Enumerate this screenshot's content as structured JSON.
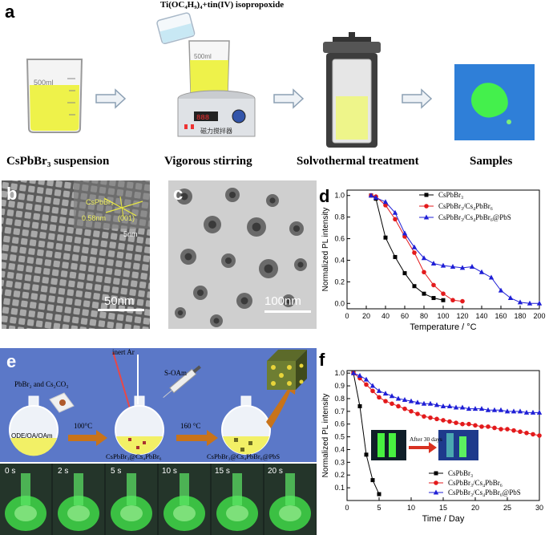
{
  "panel_a": {
    "label": "a",
    "reagent": "Ti(OC₄H₉)₄+tin(IV) isopropoxide",
    "beaker_volume": "500ml",
    "stirrer_text": "磁力搅拌器",
    "stages": [
      "CsPbBr₃ suspension",
      "Vigorous stirring",
      "Solvothermal treatment",
      "Samples"
    ]
  },
  "panel_b": {
    "label": "b",
    "lattice_phase": "CsPbBr₃",
    "d_spacing": "0.58nm",
    "plane": "(001)",
    "inset_scale": "5nm",
    "scale": "50nm"
  },
  "panel_c": {
    "label": "c",
    "scale": "100nm"
  },
  "panel_e": {
    "label": "e",
    "precursor": "PbBr₂ and Cs₂CO₃",
    "solvent": "ODE/OA/OAm",
    "gas": "inert Ar",
    "injection": "S-OAm",
    "temp1": "100°C",
    "temp2": "160 °C",
    "product1": "CsPbBr₃@Cs₄PbBr₆",
    "product2": "CsPbBr₃@Cs₄PbBr₆@PbS",
    "times": [
      "0 s",
      "2 s",
      "5 s",
      "10 s",
      "15 s",
      "20 s"
    ]
  },
  "colors": {
    "black": "#000000",
    "red": "#e31a1c",
    "blue": "#1f1fd6",
    "yellow": "#f2ee3a",
    "green": "#35e84a",
    "orange": "#c8731a"
  },
  "chart_data": [
    {
      "panel": "d",
      "type": "line",
      "xlabel": "Temperature / °C",
      "ylabel": "Normalized PL intensity",
      "xlim": [
        0,
        200
      ],
      "ylim": [
        -0.05,
        1.05
      ],
      "xticks": [
        0,
        20,
        40,
        60,
        80,
        100,
        120,
        140,
        160,
        180,
        200
      ],
      "yticks": [
        0.0,
        0.2,
        0.4,
        0.6,
        0.8,
        1.0
      ],
      "legend_position": "top-right",
      "series": [
        {
          "name": "CsPbBr₃",
          "marker": "square",
          "color": "#000000",
          "x": [
            25,
            30,
            40,
            50,
            60,
            70,
            80,
            90,
            100
          ],
          "y": [
            1.0,
            0.97,
            0.61,
            0.43,
            0.28,
            0.16,
            0.09,
            0.05,
            0.03
          ]
        },
        {
          "name": "CsPbBr₃/Cs₄PbBr₆",
          "marker": "circle",
          "color": "#e31a1c",
          "x": [
            25,
            30,
            40,
            50,
            60,
            70,
            80,
            90,
            100,
            110,
            120
          ],
          "y": [
            1.0,
            0.99,
            0.91,
            0.78,
            0.62,
            0.47,
            0.29,
            0.17,
            0.09,
            0.03,
            0.02
          ]
        },
        {
          "name": "CsPbBr₃/Cs₄PbBr₆@PbS",
          "marker": "triangle",
          "color": "#1f1fd6",
          "x": [
            25,
            30,
            40,
            50,
            60,
            70,
            80,
            90,
            100,
            110,
            120,
            130,
            140,
            150,
            160,
            170,
            180,
            190,
            200
          ],
          "y": [
            1.0,
            0.98,
            0.94,
            0.84,
            0.65,
            0.52,
            0.42,
            0.37,
            0.35,
            0.34,
            0.33,
            0.34,
            0.29,
            0.24,
            0.12,
            0.05,
            0.01,
            0.0,
            0.0
          ]
        }
      ]
    },
    {
      "panel": "f",
      "type": "line",
      "xlabel": "Time / Day",
      "ylabel": "Normalized PL intensity",
      "xlim": [
        0,
        30
      ],
      "ylim": [
        0.0,
        1.02
      ],
      "xticks": [
        0,
        5,
        10,
        15,
        20,
        25,
        30
      ],
      "yticks": [
        0.1,
        0.2,
        0.3,
        0.4,
        0.5,
        0.6,
        0.7,
        0.8,
        0.9,
        1.0
      ],
      "legend_position": "bottom-center",
      "inset_label": "After 30 days",
      "series": [
        {
          "name": "CsPbBr₃",
          "marker": "square",
          "color": "#000000",
          "x": [
            1,
            2,
            3,
            4,
            5
          ],
          "y": [
            1.0,
            0.74,
            0.36,
            0.16,
            0.05
          ]
        },
        {
          "name": "CsPbBr₃/Cs₄PbBr₆",
          "marker": "circle",
          "color": "#e31a1c",
          "x": [
            1,
            2,
            3,
            4,
            5,
            6,
            7,
            8,
            9,
            10,
            11,
            12,
            13,
            14,
            15,
            16,
            17,
            18,
            19,
            20,
            21,
            22,
            23,
            24,
            25,
            26,
            27,
            28,
            29,
            30
          ],
          "y": [
            1.0,
            0.96,
            0.91,
            0.86,
            0.81,
            0.78,
            0.76,
            0.74,
            0.72,
            0.7,
            0.68,
            0.66,
            0.65,
            0.64,
            0.63,
            0.62,
            0.61,
            0.6,
            0.6,
            0.59,
            0.58,
            0.58,
            0.57,
            0.56,
            0.56,
            0.55,
            0.54,
            0.53,
            0.52,
            0.51
          ]
        },
        {
          "name": "CsPbBr₃/Cs₄PbBr₆@PbS",
          "marker": "triangle",
          "color": "#1f1fd6",
          "x": [
            1,
            2,
            3,
            4,
            5,
            6,
            7,
            8,
            9,
            10,
            11,
            12,
            13,
            14,
            15,
            16,
            17,
            18,
            19,
            20,
            21,
            22,
            23,
            24,
            25,
            26,
            27,
            28,
            29,
            30
          ],
          "y": [
            1.0,
            0.98,
            0.95,
            0.9,
            0.86,
            0.84,
            0.82,
            0.8,
            0.79,
            0.78,
            0.77,
            0.76,
            0.76,
            0.75,
            0.74,
            0.74,
            0.73,
            0.73,
            0.72,
            0.72,
            0.72,
            0.71,
            0.71,
            0.71,
            0.7,
            0.7,
            0.7,
            0.69,
            0.69,
            0.69
          ]
        }
      ]
    }
  ]
}
